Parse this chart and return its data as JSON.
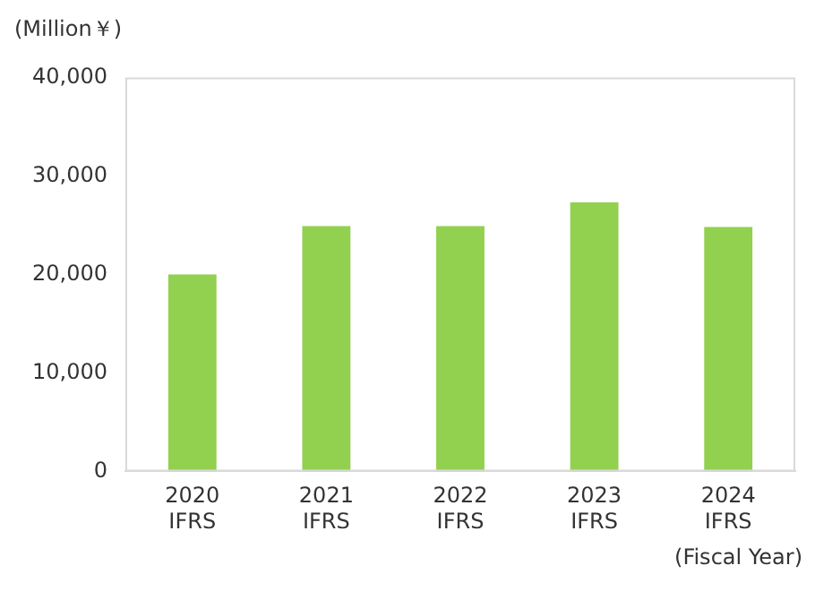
{
  "chart_data": {
    "type": "bar",
    "ylabel": "(Million￥)",
    "xlabel": "(Fiscal Year)",
    "categories": [
      "2020\nIFRS",
      "2021\nIFRS",
      "2022\nIFRS",
      "2023\nIFRS",
      "2024\nIFRS"
    ],
    "values": [
      20000,
      24900,
      24900,
      27300,
      24800
    ],
    "color": "#92d050",
    "ylim": [
      0,
      40000
    ],
    "yticks": [
      0,
      {
        "value": 10000,
        "label": "10,000"
      },
      {
        "value": 20000,
        "label": "20,000"
      },
      {
        "value": 30000,
        "label": "30,000"
      },
      {
        "value": 40000,
        "label": "40,000"
      }
    ],
    "grid": false
  }
}
